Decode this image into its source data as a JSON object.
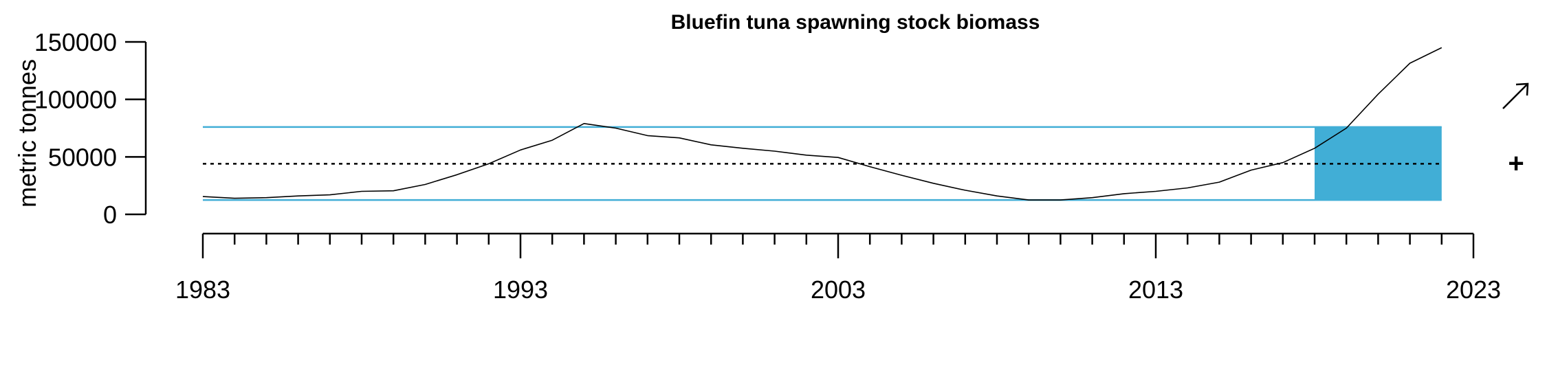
{
  "chart_data": {
    "type": "line",
    "title": "Bluefin tuna spawning stock biomass",
    "ylabel": "metric tonnes",
    "xlabel": "",
    "xlim": [
      1983,
      2023
    ],
    "ylim": [
      0,
      150000
    ],
    "x_ticks": [
      1983,
      1993,
      2003,
      2013,
      2023
    ],
    "y_ticks": [
      0,
      50000,
      100000,
      150000
    ],
    "x": [
      1983,
      1984,
      1985,
      1986,
      1987,
      1988,
      1989,
      1990,
      1991,
      1992,
      1993,
      1994,
      1995,
      1996,
      1997,
      1998,
      1999,
      2000,
      2001,
      2002,
      2003,
      2004,
      2005,
      2006,
      2007,
      2008,
      2009,
      2010,
      2011,
      2012,
      2013,
      2014,
      2015,
      2016,
      2017,
      2018,
      2019,
      2020,
      2021,
      2022
    ],
    "series": [
      {
        "values": [
          15500,
          14000,
          14500,
          16000,
          17000,
          20000,
          20500,
          26000,
          34500,
          44000,
          56000,
          64500,
          79000,
          75000,
          68500,
          66500,
          60500,
          57500,
          55000,
          51500,
          49500,
          41500,
          34000,
          27000,
          21000,
          16000,
          12500,
          12500,
          14500,
          18000,
          20000,
          23000,
          28000,
          38500,
          45000,
          57500,
          75000,
          104500,
          131500,
          145000
        ]
      }
    ],
    "reference_lines": {
      "mean": 44000,
      "upper": 76000,
      "lower": 12500
    },
    "highlight_period": [
      2018,
      2022
    ],
    "colors": {
      "band": "#41aed6",
      "line": "#000000",
      "mean": "#000000"
    },
    "indicators": {
      "trend": "increasing",
      "trend_icon": "arrow-up-right",
      "status": "above-mean",
      "status_symbol": "+"
    }
  }
}
